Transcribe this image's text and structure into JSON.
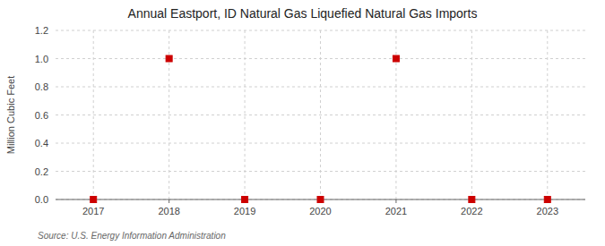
{
  "chart_data": {
    "type": "scatter",
    "title": "Annual Eastport, ID Natural Gas Liquefied Natural Gas Imports",
    "y_label": "Million Cubic Feet",
    "source": "Source: U.S. Energy Information Administration",
    "x": [
      2017,
      2018,
      2019,
      2020,
      2021,
      2022,
      2023
    ],
    "values": [
      0,
      1.0,
      0,
      0,
      1.0,
      0,
      0
    ],
    "xlim": [
      2016.5,
      2023.5
    ],
    "ylim": [
      0,
      1.2
    ],
    "xticks": [
      2017,
      2018,
      2019,
      2020,
      2021,
      2022,
      2023
    ],
    "yticks": [
      {
        "value": 0.0,
        "label": "0.0"
      },
      0.2,
      0.4,
      0.6,
      0.8,
      {
        "value": 1.0,
        "label": "1.0"
      },
      1.2
    ],
    "color": "#cc0000",
    "marker": "square",
    "grid": true
  }
}
